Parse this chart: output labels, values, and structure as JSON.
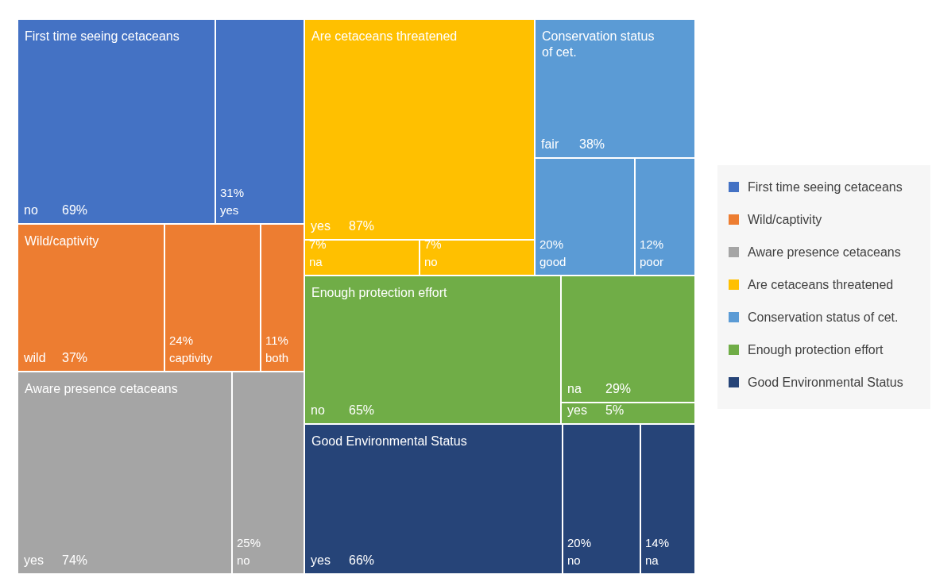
{
  "chart_data": {
    "type": "other",
    "legend": "right",
    "categories": [
      "no",
      "yes",
      "wild",
      "captivity",
      "both",
      "yes",
      "no",
      "yes",
      "na",
      "no",
      "fair",
      "good",
      "poor",
      "no",
      "na",
      "yes",
      "yes",
      "no",
      "na"
    ],
    "series": [
      {
        "name": "First time seeing cetaceans",
        "color": "#4472c4",
        "values": [
          69,
          31,
          null,
          null,
          null,
          null,
          null,
          null,
          null,
          null,
          null,
          null,
          null,
          null,
          null,
          null,
          null,
          null,
          null
        ],
        "value_labels": [
          "69%",
          "31%",
          null,
          null,
          null,
          null,
          null,
          null,
          null,
          null,
          null,
          null,
          null,
          null,
          null,
          null,
          null,
          null,
          null
        ]
      },
      {
        "name": "Wild/captivity",
        "color": "#ed7d31",
        "values": [
          null,
          null,
          37,
          24,
          11,
          null,
          null,
          null,
          null,
          null,
          null,
          null,
          null,
          null,
          null,
          null,
          null,
          null,
          null
        ],
        "value_labels": [
          null,
          null,
          "37%",
          "24%",
          "11%",
          null,
          null,
          null,
          null,
          null,
          null,
          null,
          null,
          null,
          null,
          null,
          null,
          null,
          null
        ]
      },
      {
        "name": "Aware presence cetaceans",
        "color": "#a5a5a5",
        "values": [
          null,
          null,
          null,
          null,
          null,
          74,
          25,
          null,
          null,
          null,
          null,
          null,
          null,
          null,
          null,
          null,
          null,
          null,
          null
        ],
        "value_labels": [
          null,
          null,
          null,
          null,
          null,
          "74%",
          "25%",
          null,
          null,
          null,
          null,
          null,
          null,
          null,
          null,
          null,
          null,
          null,
          null
        ]
      },
      {
        "name": "Are cetaceans threatened",
        "color": "#ffc000",
        "values": [
          null,
          null,
          null,
          null,
          null,
          null,
          null,
          87,
          7,
          7,
          null,
          null,
          null,
          null,
          null,
          null,
          null,
          null,
          null
        ],
        "value_labels": [
          null,
          null,
          null,
          null,
          null,
          null,
          null,
          "87%",
          "7%",
          "7%",
          null,
          null,
          null,
          null,
          null,
          null,
          null,
          null,
          null
        ]
      },
      {
        "name": "Conservation status of cet.",
        "color": "#5b9bd5",
        "values": [
          null,
          null,
          null,
          null,
          null,
          null,
          null,
          null,
          null,
          null,
          38,
          20,
          12,
          null,
          null,
          null,
          null,
          null,
          null
        ],
        "value_labels": [
          null,
          null,
          null,
          null,
          null,
          null,
          null,
          null,
          null,
          null,
          "38%",
          "20%",
          "12%",
          null,
          null,
          null,
          null,
          null,
          null
        ]
      },
      {
        "name": "Enough protection effort",
        "color": "#70ad47",
        "values": [
          null,
          null,
          null,
          null,
          null,
          null,
          null,
          null,
          null,
          null,
          null,
          null,
          null,
          65,
          29,
          5,
          null,
          null,
          null
        ],
        "value_labels": [
          null,
          null,
          null,
          null,
          null,
          null,
          null,
          null,
          null,
          null,
          null,
          null,
          null,
          "65%",
          "29%",
          "5%",
          null,
          null,
          null
        ]
      },
      {
        "name": "Good Environmental Status",
        "color": "#264478",
        "values": [
          null,
          null,
          null,
          null,
          null,
          null,
          null,
          null,
          null,
          null,
          null,
          null,
          null,
          null,
          null,
          null,
          66,
          20,
          14
        ],
        "value_labels": [
          null,
          null,
          null,
          null,
          null,
          null,
          null,
          null,
          null,
          null,
          null,
          null,
          null,
          null,
          null,
          null,
          "66%",
          "20%",
          "14%"
        ]
      }
    ]
  }
}
